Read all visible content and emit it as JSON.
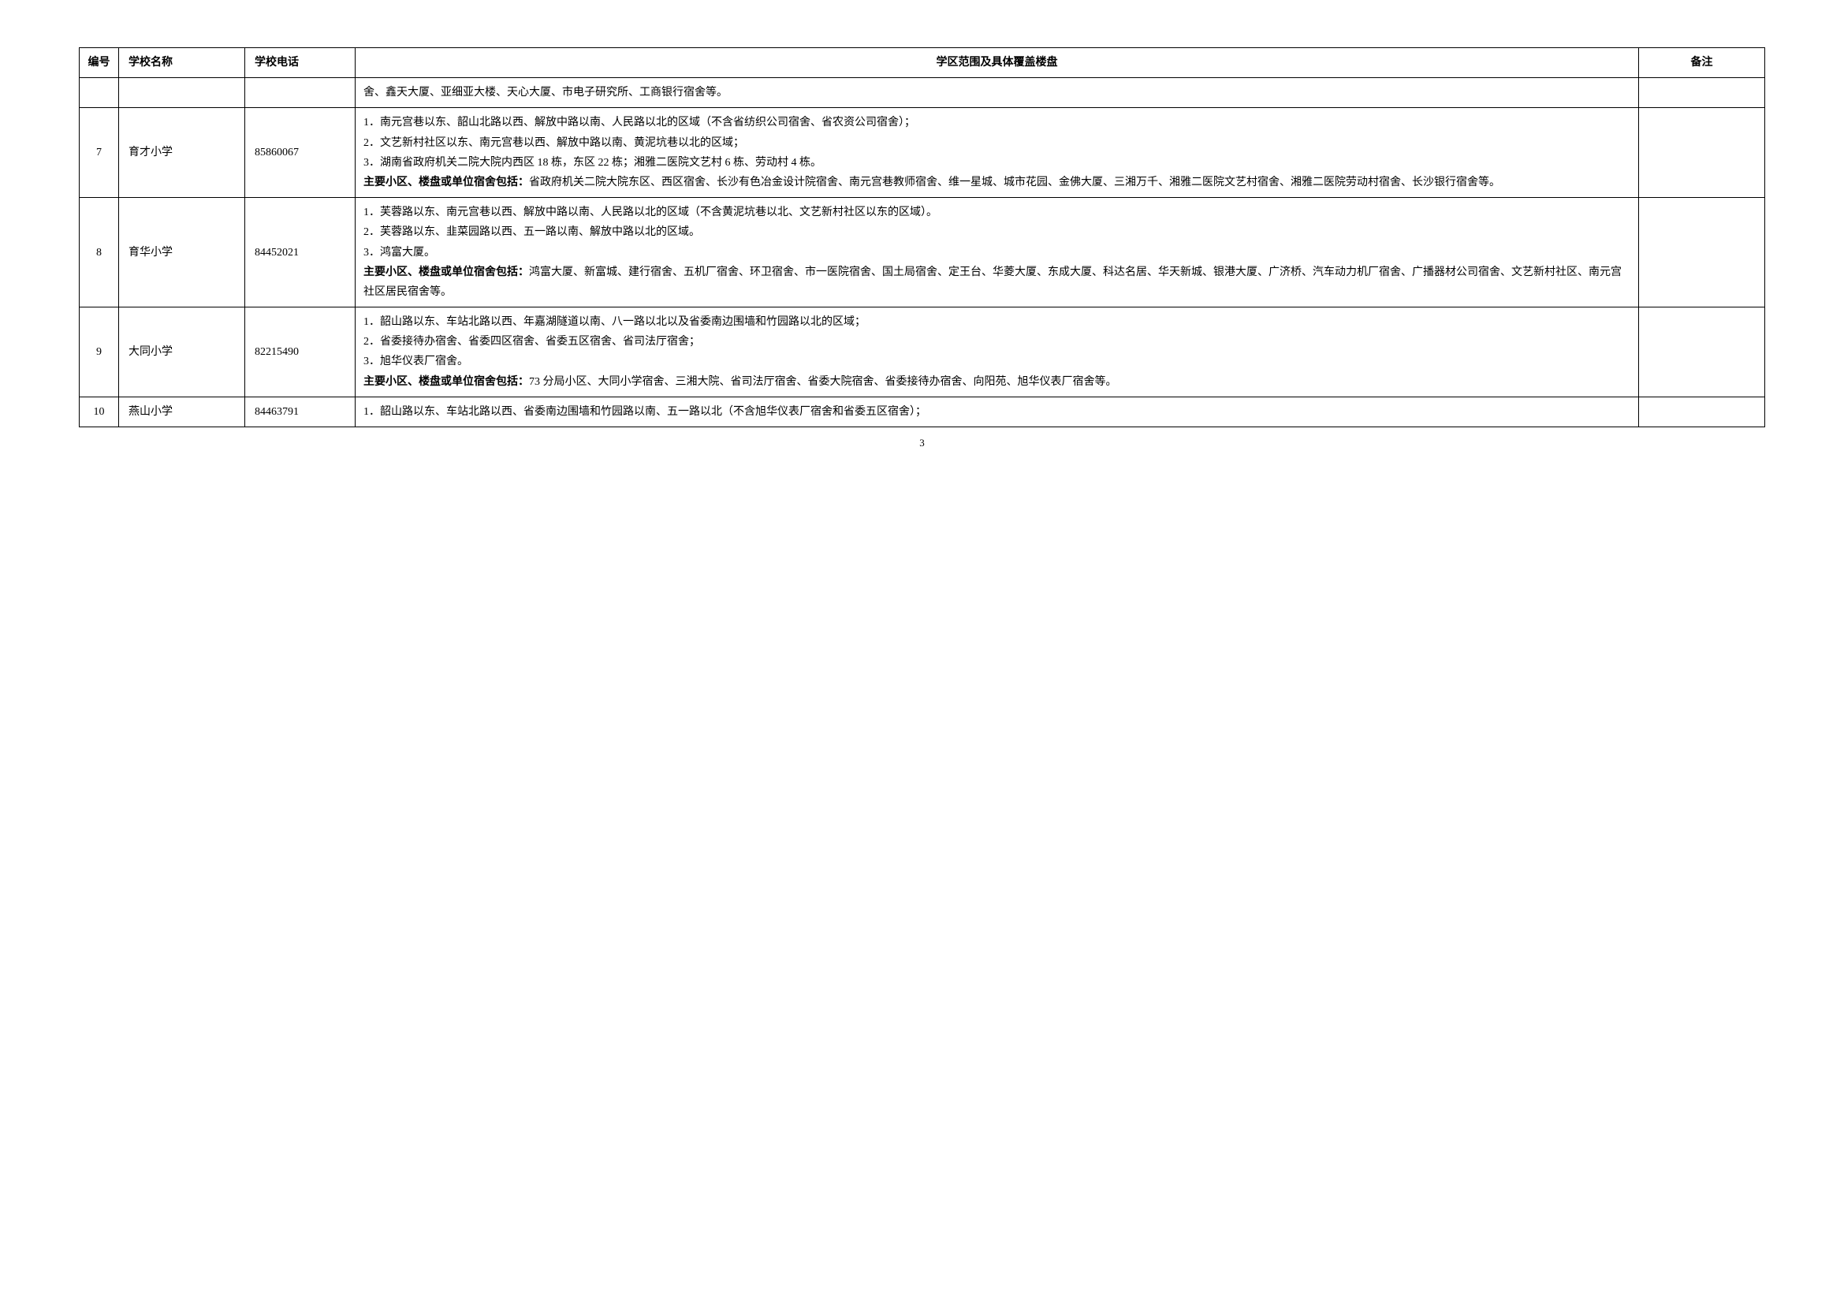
{
  "table": {
    "headers": {
      "num": "编号",
      "name": "学校名称",
      "phone": "学校电话",
      "scope": "学区范围及具体覆盖楼盘",
      "remark": "备注"
    },
    "rows": [
      {
        "num": "",
        "name": "",
        "phone": "",
        "scope_plain": "舍、鑫天大厦、亚细亚大楼、天心大厦、市电子研究所、工商银行宿舍等。",
        "scope_bold": "",
        "scope_after": "",
        "remark": ""
      },
      {
        "num": "7",
        "name": "育才小学",
        "phone": "85860067",
        "scope_plain": "1．南元宫巷以东、韶山北路以西、解放中路以南、人民路以北的区域（不含省纺织公司宿舍、省农资公司宿舍）；\n2．文艺新村社区以东、南元宫巷以西、解放中路以南、黄泥坑巷以北的区域；\n3．湖南省政府机关二院大院内西区 18 栋，东区 22 栋；湘雅二医院文艺村 6 栋、劳动村 4 栋。\n",
        "scope_bold": "主要小区、楼盘或单位宿舍包括：",
        "scope_after": "省政府机关二院大院东区、西区宿舍、长沙有色冶金设计院宿舍、南元宫巷教师宿舍、维一星城、城市花园、金佛大厦、三湘万千、湘雅二医院文艺村宿舍、湘雅二医院劳动村宿舍、长沙银行宿舍等。",
        "remark": ""
      },
      {
        "num": "8",
        "name": "育华小学",
        "phone": "84452021",
        "scope_plain": "1．芙蓉路以东、南元宫巷以西、解放中路以南、人民路以北的区域（不含黄泥坑巷以北、文艺新村社区以东的区域）。\n2．芙蓉路以东、韭菜园路以西、五一路以南、解放中路以北的区域。\n3．鸿富大厦。\n",
        "scope_bold": "主要小区、楼盘或单位宿舍包括：",
        "scope_after": "鸿富大厦、新富城、建行宿舍、五机厂宿舍、环卫宿舍、市一医院宿舍、国土局宿舍、定王台、华菱大厦、东成大厦、科达名居、华天新城、银港大厦、广济桥、汽车动力机厂宿舍、广播器材公司宿舍、文艺新村社区、南元宫社区居民宿舍等。",
        "remark": ""
      },
      {
        "num": "9",
        "name": "大同小学",
        "phone": "82215490",
        "scope_plain": "1．韶山路以东、车站北路以西、年嘉湖隧道以南、八一路以北以及省委南边围墙和竹园路以北的区域；\n2．省委接待办宿舍、省委四区宿舍、省委五区宿舍、省司法厅宿舍；\n3．旭华仪表厂宿舍。\n",
        "scope_bold": "主要小区、楼盘或单位宿舍包括：",
        "scope_after": "73 分局小区、大同小学宿舍、三湘大院、省司法厅宿舍、省委大院宿舍、省委接待办宿舍、向阳苑、旭华仪表厂宿舍等。",
        "remark": ""
      },
      {
        "num": "10",
        "name": "燕山小学",
        "phone": "84463791",
        "scope_plain": "1．韶山路以东、车站北路以西、省委南边围墙和竹园路以南、五一路以北（不含旭华仪表厂宿舍和省委五区宿舍）；",
        "scope_bold": "",
        "scope_after": "",
        "remark": ""
      }
    ]
  },
  "page_number": "3"
}
